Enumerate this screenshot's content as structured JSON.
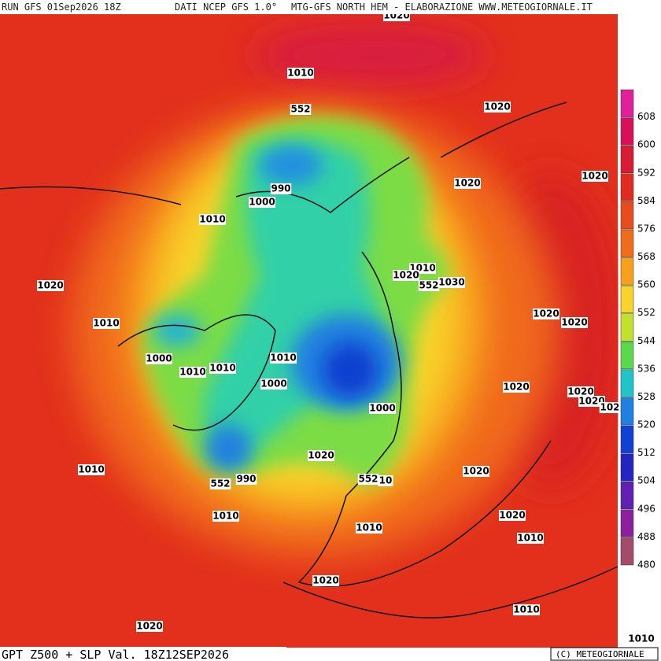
{
  "header": {
    "run": "RUN GFS 01Sep2026 18Z",
    "source": "DATI NCEP GFS 1.0°",
    "credit": "MTG-GFS NORTH HEM - ELABORAZIONE WWW.METEOGIORNALE.IT"
  },
  "footer": {
    "title": "GPT Z500 + SLP Val. 18Z12SEP2026",
    "copyright": "(C) METEOGIORNALE"
  },
  "colorbar": {
    "levels": [
      {
        "label": "608",
        "color": "#e0209a"
      },
      {
        "label": "600",
        "color": "#d8105a"
      },
      {
        "label": "592",
        "color": "#d81c36"
      },
      {
        "label": "584",
        "color": "#e02c1e"
      },
      {
        "label": "576",
        "color": "#e84c1c"
      },
      {
        "label": "568",
        "color": "#f06c1c"
      },
      {
        "label": "560",
        "color": "#f8a01e"
      },
      {
        "label": "552",
        "color": "#f8d42c"
      },
      {
        "label": "544",
        "color": "#c4e02c"
      },
      {
        "label": "536",
        "color": "#5cd84c"
      },
      {
        "label": "528",
        "color": "#22c4cc"
      },
      {
        "label": "520",
        "color": "#2080e0"
      },
      {
        "label": "512",
        "color": "#1040d4"
      },
      {
        "label": "504",
        "color": "#2424c0"
      },
      {
        "label": "496",
        "color": "#6020b0"
      },
      {
        "label": "488",
        "color": "#8c209c"
      },
      {
        "label": "480",
        "color": "#a44a6a"
      }
    ]
  },
  "map": {
    "labels": [
      "1020",
      "1010",
      "552",
      "1020",
      "1020",
      "1020",
      "990",
      "1000",
      "1010",
      "1010",
      "1020",
      "552",
      "1030",
      "1020",
      "1010",
      "1020",
      "1020",
      "1000",
      "1010",
      "1010",
      "1010",
      "1000",
      "1020",
      "1020",
      "1020",
      "102",
      "1000",
      "1020",
      "552",
      "10",
      "1010",
      "552",
      "990",
      "1020",
      "1010",
      "1010",
      "1020",
      "1010",
      "1020",
      "1010",
      "1020",
      "1010"
    ]
  }
}
